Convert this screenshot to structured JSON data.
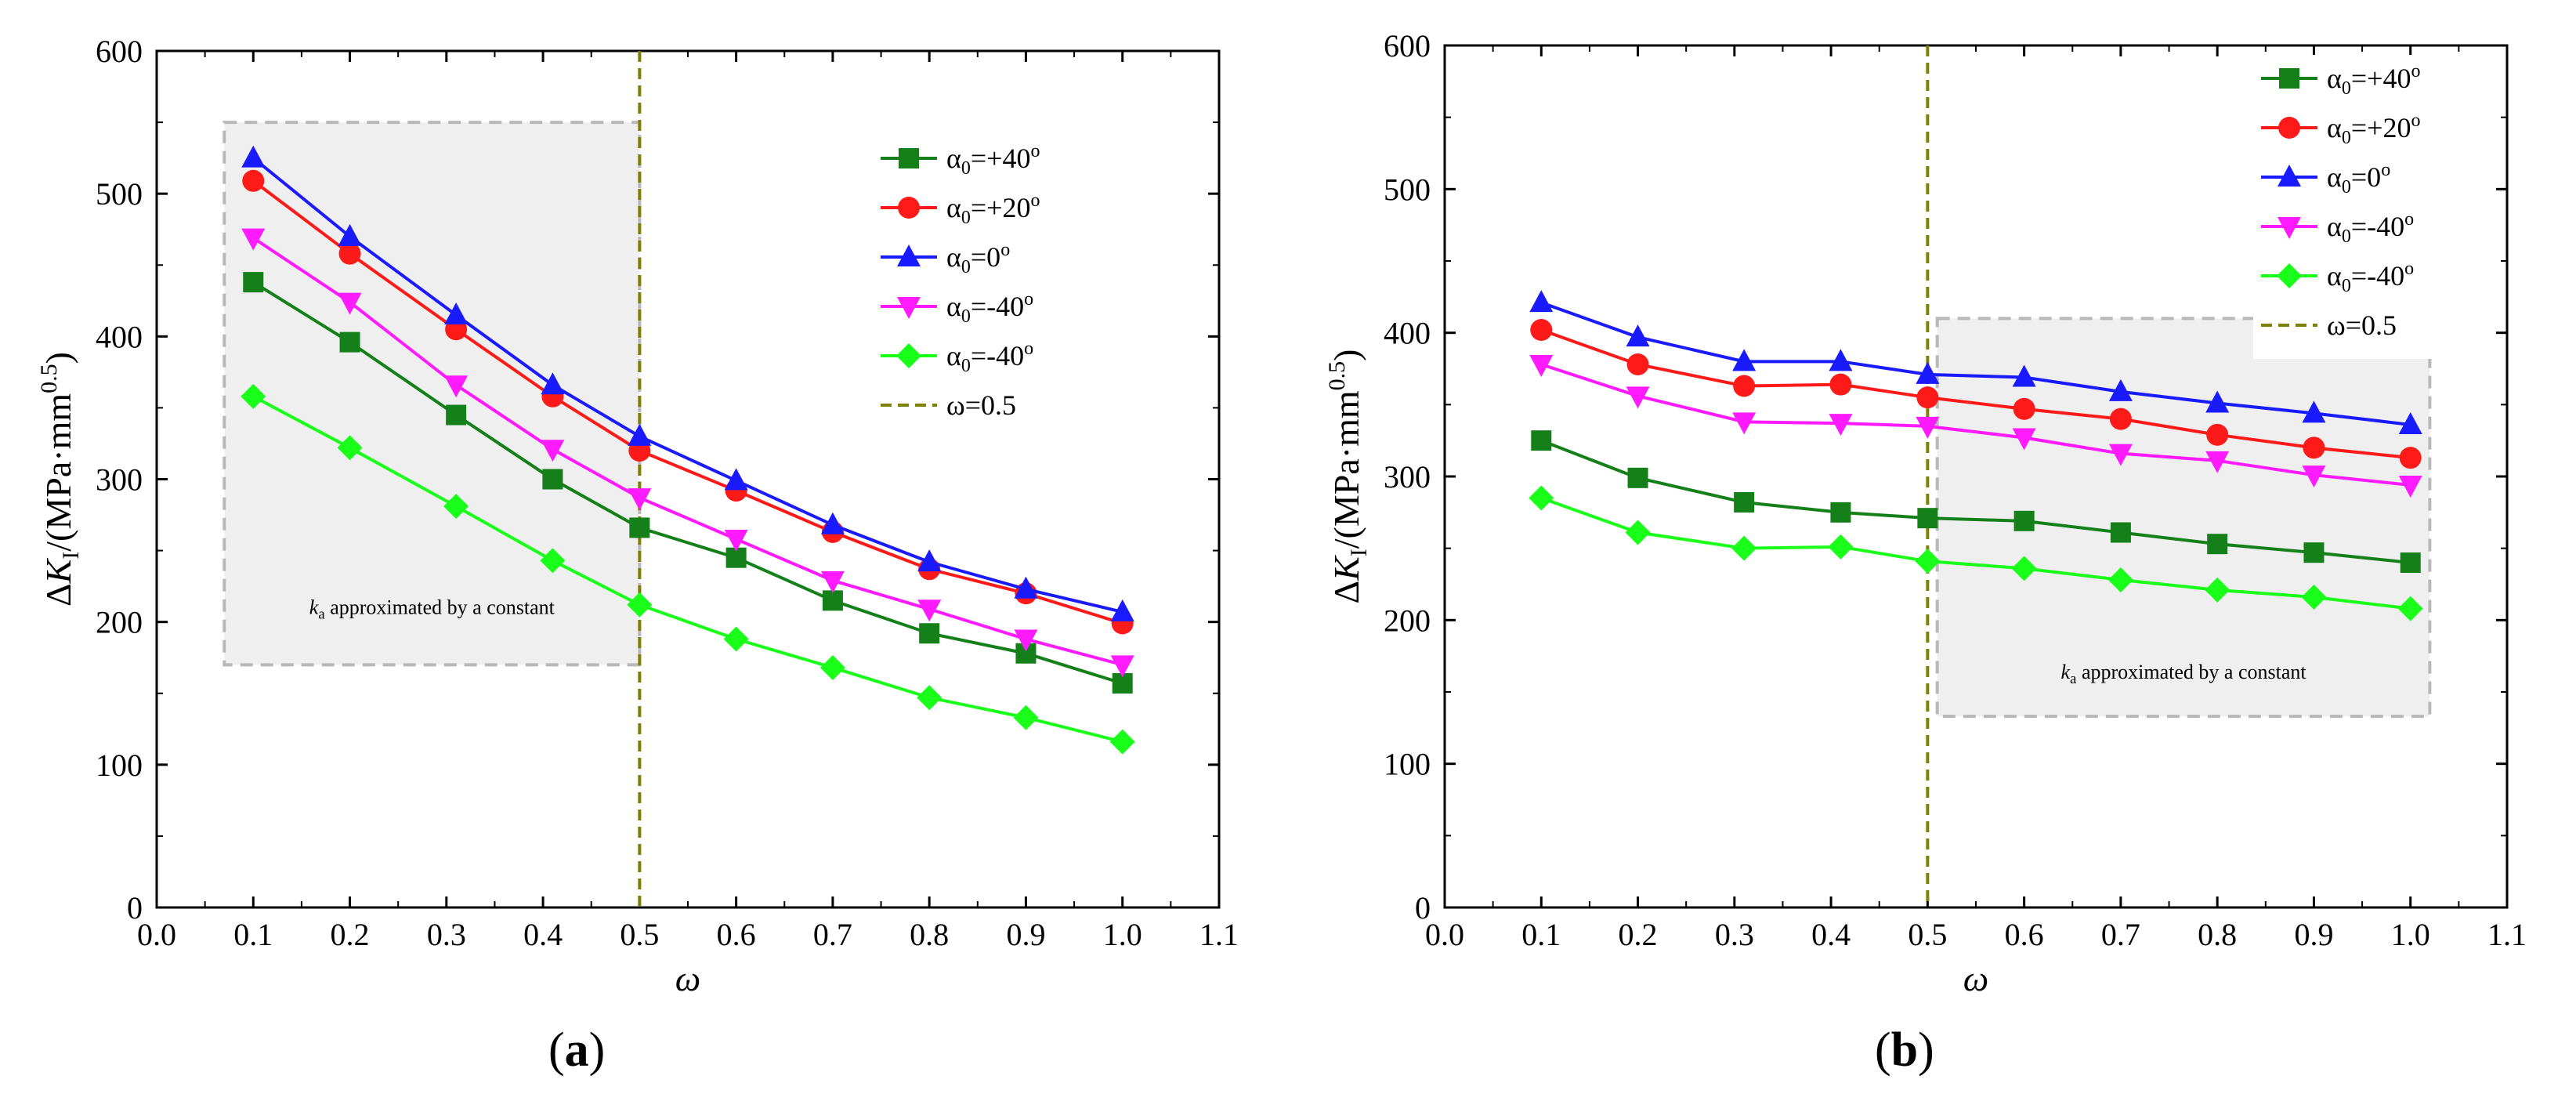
{
  "figure": {
    "panels": [
      {
        "label_open": "(",
        "label_letter": "a",
        "label_close": ")"
      },
      {
        "label_open": "(",
        "label_letter": "b",
        "label_close": ")"
      }
    ]
  },
  "colors": {
    "plus40": "#15801a",
    "plus20": "#ff1a1a",
    "zero": "#1a1aff",
    "minus40a": "#ff1aff",
    "minus40b": "#1aff1a",
    "vline": "#808000",
    "shade_fill": "#efefef",
    "shade_border": "#b8b8b8"
  },
  "chart_data": [
    {
      "type": "line",
      "panel": "a",
      "xlabel": "ω",
      "ylabel": "ΔK_I/(MPa·mm^0.5)",
      "ylabel_parts": {
        "delta": "Δ",
        "k": "K",
        "k_sub": "I",
        "unit": "/(MPa·mm",
        "exp": "0.5",
        "close": ")"
      },
      "xlim": [
        0.0,
        1.1
      ],
      "ylim": [
        0,
        600
      ],
      "xticks": [
        "0.0",
        "0.1",
        "0.2",
        "0.3",
        "0.4",
        "0.5",
        "0.6",
        "0.7",
        "0.8",
        "0.9",
        "1.0",
        "1.1"
      ],
      "yticks": [
        "0",
        "100",
        "200",
        "300",
        "400",
        "500",
        "600"
      ],
      "legend_position": "top-right",
      "x": [
        0.1,
        0.2,
        0.31,
        0.41,
        0.5,
        0.6,
        0.7,
        0.8,
        0.9,
        1.0
      ],
      "series": [
        {
          "name": "α0=+40o",
          "label_base": "α",
          "label_sub": "0",
          "label_rest": "=+40",
          "label_sup": "o",
          "color_key": "plus40",
          "marker": "square",
          "values": [
            438,
            396,
            345,
            300,
            266,
            245,
            215,
            192,
            178,
            157
          ]
        },
        {
          "name": "α0=+20o",
          "label_base": "α",
          "label_sub": "0",
          "label_rest": "=+20",
          "label_sup": "o",
          "color_key": "plus20",
          "marker": "circle",
          "values": [
            509,
            458,
            405,
            358,
            320,
            292,
            263,
            237,
            220,
            199
          ]
        },
        {
          "name": "α0=0o",
          "label_base": "α",
          "label_sub": "0",
          "label_rest": "=0",
          "label_sup": "o",
          "color_key": "zero",
          "marker": "triangle-up",
          "values": [
            525,
            470,
            415,
            366,
            330,
            299,
            268,
            242,
            223,
            207
          ]
        },
        {
          "name": "α0=-40o",
          "label_base": "α",
          "label_sub": "0",
          "label_rest": "=-40",
          "label_sup": "o",
          "color_key": "minus40a",
          "marker": "triangle-down",
          "values": [
            469,
            424,
            366,
            321,
            287,
            258,
            229,
            209,
            188,
            170
          ]
        },
        {
          "name": "α0=-40o",
          "label_base": "α",
          "label_sub": "0",
          "label_rest": "=-40",
          "label_sup": "o",
          "color_key": "minus40b",
          "marker": "diamond",
          "values": [
            358,
            322,
            281,
            243,
            212,
            188,
            168,
            147,
            133,
            116
          ]
        }
      ],
      "vline": {
        "x": 0.5,
        "label": "ω=0.5"
      },
      "shaded_region": {
        "x_range": [
          0.07,
          0.5
        ],
        "y_range": [
          170,
          550
        ],
        "label_k": "k",
        "label_sub": "a",
        "label_rest": " approximated by a constant"
      }
    },
    {
      "type": "line",
      "panel": "b",
      "xlabel": "ω",
      "ylabel": "ΔK_I/(MPa·mm^0.5)",
      "ylabel_parts": {
        "delta": "Δ",
        "k": "K",
        "k_sub": "I",
        "unit": "/(MPa·mm",
        "exp": "0.5",
        "close": ")"
      },
      "xlim": [
        0.0,
        1.1
      ],
      "ylim": [
        0,
        600
      ],
      "xticks": [
        "0.0",
        "0.1",
        "0.2",
        "0.3",
        "0.4",
        "0.5",
        "0.6",
        "0.7",
        "0.8",
        "0.9",
        "1.0",
        "1.1"
      ],
      "yticks": [
        "0",
        "100",
        "200",
        "300",
        "400",
        "500",
        "600"
      ],
      "legend_position": "top-right",
      "x": [
        0.1,
        0.2,
        0.31,
        0.41,
        0.5,
        0.6,
        0.7,
        0.8,
        0.9,
        1.0
      ],
      "series": [
        {
          "name": "α0=+40o",
          "label_base": "α",
          "label_sub": "0",
          "label_rest": "=+40",
          "label_sup": "o",
          "color_key": "plus40",
          "marker": "square",
          "values": [
            325,
            299,
            282,
            275,
            271,
            269,
            261,
            253,
            247,
            240
          ]
        },
        {
          "name": "α0=+20o",
          "label_base": "α",
          "label_sub": "0",
          "label_rest": "=+20",
          "label_sup": "o",
          "color_key": "plus20",
          "marker": "circle",
          "values": [
            402,
            378,
            363,
            364,
            355,
            347,
            340,
            329,
            320,
            313
          ]
        },
        {
          "name": "α0=0o",
          "label_base": "α",
          "label_sub": "0",
          "label_rest": "=0",
          "label_sup": "o",
          "color_key": "zero",
          "marker": "triangle-up",
          "values": [
            421,
            397,
            380,
            380,
            371,
            369,
            359,
            351,
            344,
            336
          ]
        },
        {
          "name": "α0=-40o",
          "label_base": "α",
          "label_sub": "0",
          "label_rest": "=-40",
          "label_sup": "o",
          "color_key": "minus40a",
          "marker": "triangle-down",
          "values": [
            378,
            356,
            338,
            337,
            335,
            327,
            316,
            311,
            301,
            294
          ]
        },
        {
          "name": "α0=-40o",
          "label_base": "α",
          "label_sub": "0",
          "label_rest": "=-40",
          "label_sup": "o",
          "color_key": "minus40b",
          "marker": "diamond",
          "values": [
            285,
            261,
            250,
            251,
            241,
            236,
            228,
            221,
            216,
            208
          ]
        }
      ],
      "vline": {
        "x": 0.5,
        "label": "ω=0.5"
      },
      "shaded_region": {
        "x_range": [
          0.51,
          1.02
        ],
        "y_range": [
          133,
          410
        ],
        "label_k": "k",
        "label_sub": "a",
        "label_rest": " approximated by a constant"
      }
    }
  ]
}
